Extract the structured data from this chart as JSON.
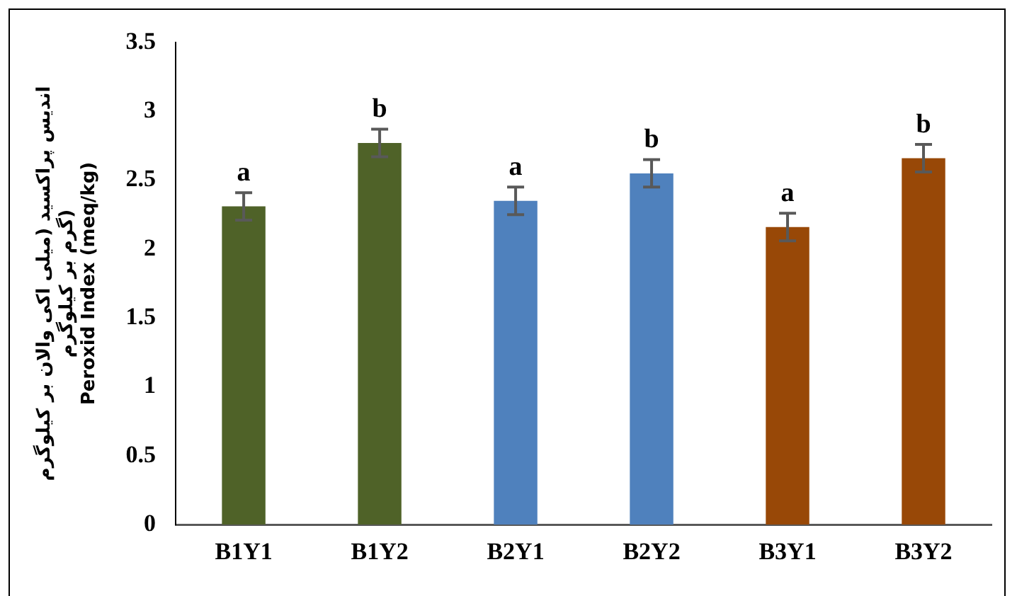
{
  "chart_data": {
    "type": "bar",
    "ylabel": "اندیس پراکسید (میلی اکی والان بر کیلوگرم\nگرم بر کیلوگرم)\nPeroxid Index (meq/kg)",
    "categories": [
      "B1Y1",
      "B1Y2",
      "B2Y1",
      "B2Y2",
      "B3Y1",
      "B3Y2"
    ],
    "values": [
      2.31,
      2.77,
      2.35,
      2.55,
      2.16,
      2.66
    ],
    "colors": [
      "#4f6228",
      "#4f6228",
      "#4f81bd",
      "#4f81bd",
      "#984807",
      "#984807"
    ],
    "errors": [
      0.1,
      0.1,
      0.1,
      0.1,
      0.1,
      0.1
    ],
    "ylim": [
      0,
      3.5
    ],
    "yticks": [
      0,
      0.5,
      1,
      1.5,
      2,
      2.5,
      3,
      3.5
    ],
    "grid": false,
    "legend": false,
    "annotations": [
      {
        "text": "a",
        "x": "B1Y1",
        "y": 2.41
      },
      {
        "text": "b",
        "x": "B1Y2",
        "y": 2.87
      },
      {
        "text": "a",
        "x": "B2Y1",
        "y": 2.45
      },
      {
        "text": "b",
        "x": "B2Y2",
        "y": 2.65
      },
      {
        "text": "a",
        "x": "B3Y1",
        "y": 2.26
      },
      {
        "text": "b",
        "x": "B3Y2",
        "y": 2.76
      }
    ]
  }
}
